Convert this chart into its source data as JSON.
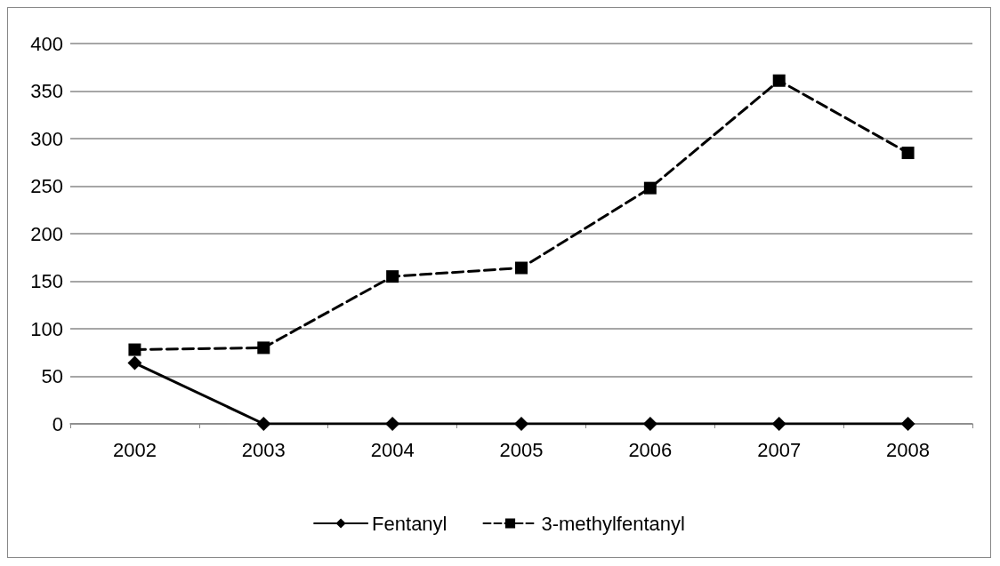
{
  "chart_data": {
    "type": "line",
    "categories": [
      "2002",
      "2003",
      "2004",
      "2005",
      "2006",
      "2007",
      "2008"
    ],
    "series": [
      {
        "name": "Fentanyl",
        "color": "#000000",
        "marker": "diamond",
        "line_style": "solid",
        "values": [
          64,
          0,
          0,
          0,
          0,
          0,
          0
        ]
      },
      {
        "name": "3-methylfentanyl",
        "color": "#000000",
        "marker": "square",
        "line_style": "dashed",
        "values": [
          78,
          80,
          155,
          164,
          248,
          361,
          285
        ]
      }
    ],
    "ylim": [
      0,
      400
    ],
    "yticks": [
      0,
      50,
      100,
      150,
      200,
      250,
      300,
      350,
      400
    ],
    "grid": "y",
    "legend": "bottom"
  }
}
